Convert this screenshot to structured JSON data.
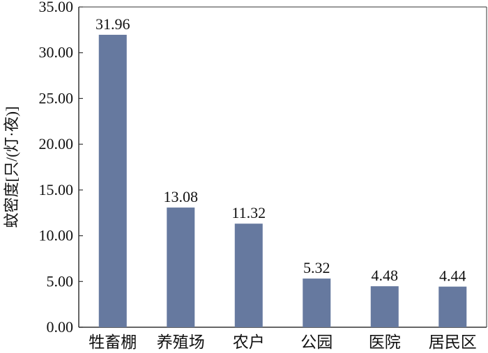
{
  "chart_data": {
    "type": "bar",
    "title": "",
    "xlabel": "",
    "ylabel": "蚊密度[只/(灯·夜)]",
    "categories": [
      "牲畜棚",
      "养殖场",
      "农户",
      "公园",
      "医院",
      "居民区"
    ],
    "values": [
      31.96,
      13.08,
      11.32,
      5.32,
      4.48,
      4.44
    ],
    "data_labels": [
      "31.96",
      "13.08",
      "11.32",
      "5.32",
      "4.48",
      "4.44"
    ],
    "ylim": [
      0,
      35
    ],
    "yticks": [
      0,
      5,
      10,
      15,
      20,
      25,
      30,
      35
    ],
    "ytick_labels": [
      "0.00",
      "5.00",
      "10.00",
      "15.00",
      "20.00",
      "25.00",
      "30.00",
      "35.00"
    ],
    "grid": false,
    "legend": "none",
    "bar_color": "#66799f"
  }
}
